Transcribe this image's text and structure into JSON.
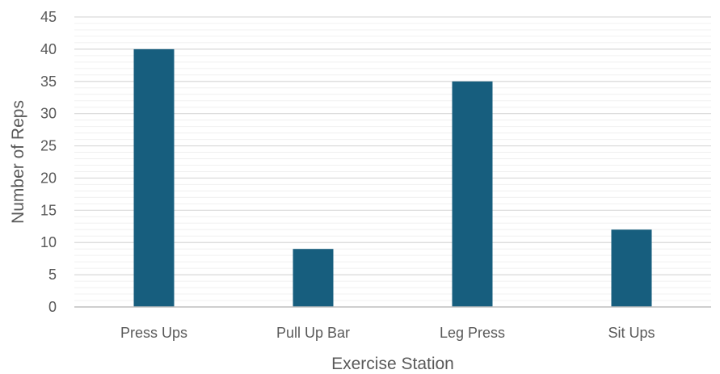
{
  "chart_data": {
    "type": "bar",
    "categories": [
      "Press Ups",
      "Pull Up Bar",
      "Leg Press",
      "Sit Ups"
    ],
    "values": [
      40,
      9,
      35,
      12
    ],
    "title": "",
    "xlabel": "Exercise Station",
    "ylabel": "Number of Reps",
    "ylim": [
      0,
      45
    ],
    "y_major_step": 5,
    "y_minor_step": 1,
    "grid": true,
    "legend": "none",
    "bar_color": "#175E7E",
    "major_grid_color": "#D9D9D9",
    "minor_grid_color": "#F0F0F0"
  }
}
